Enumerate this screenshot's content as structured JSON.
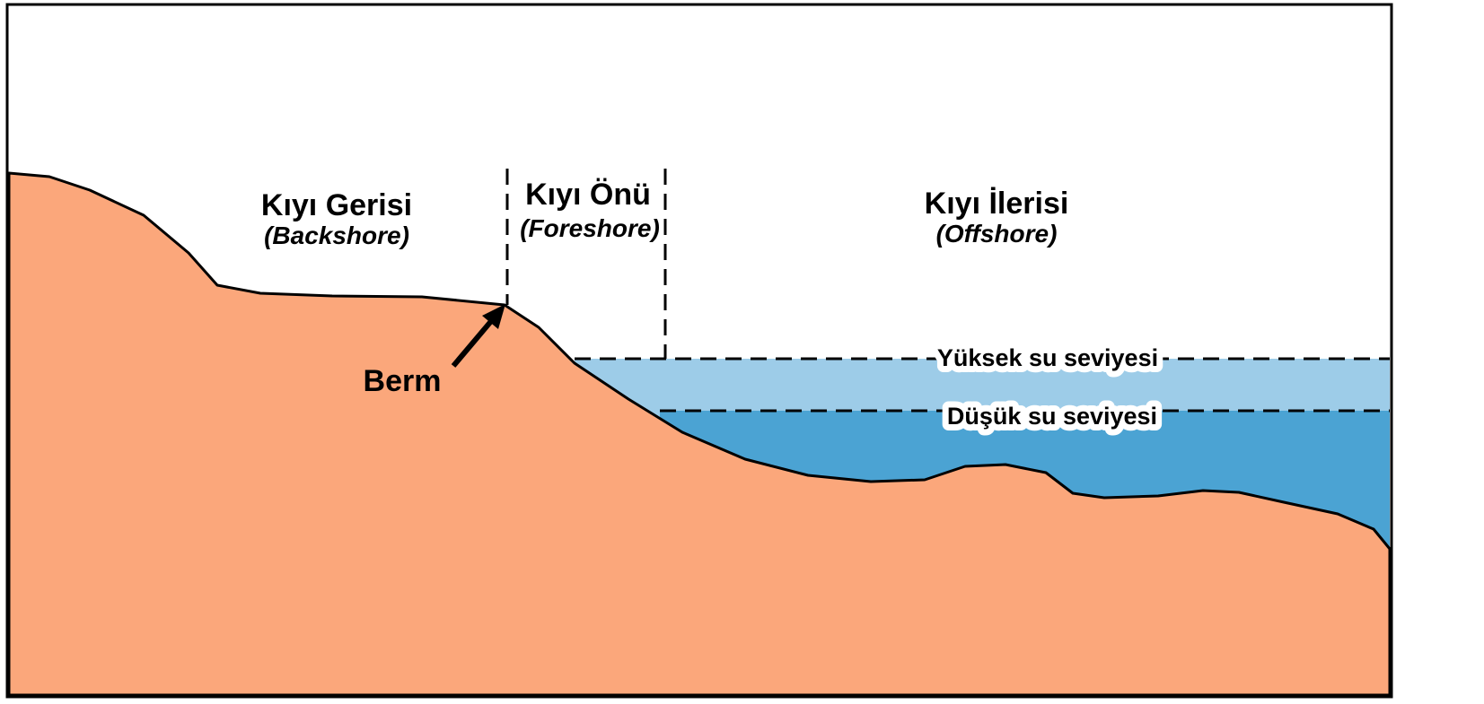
{
  "zones": [
    {
      "name": "Kıyı Gerisi",
      "subtitle": "(Backshore)"
    },
    {
      "name": "Kıyı Önü",
      "subtitle": "(Foreshore)"
    },
    {
      "name": "Kıyı İlerisi",
      "subtitle": "(Offshore)"
    }
  ],
  "berm": "Berm",
  "water_levels": {
    "high": "Yüksek su seviyesi",
    "low": "Düşük su seviyesi"
  }
}
